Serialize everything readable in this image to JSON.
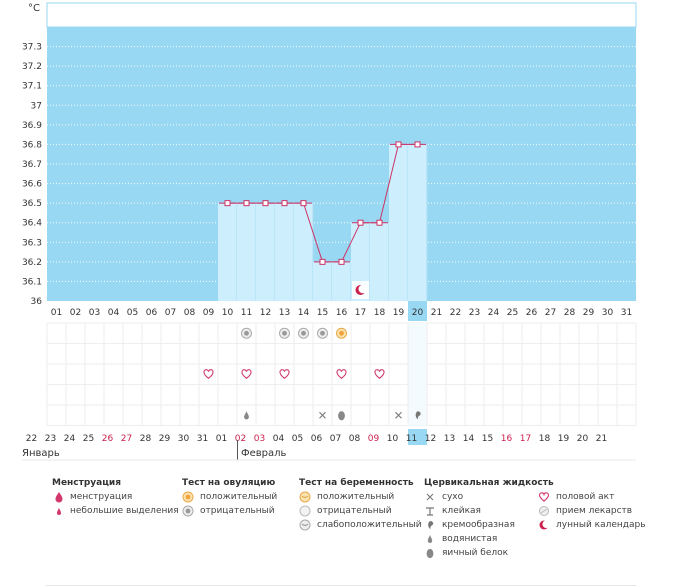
{
  "chart_data": {
    "type": "area",
    "unit_label": "°C",
    "ylim": [
      36,
      37.4
    ],
    "y_ticks": [
      "36",
      "36.1",
      "36.2",
      "36.3",
      "36.4",
      "36.5",
      "36.6",
      "36.7",
      "36.8",
      "36.9",
      "37",
      "37.1",
      "37.2",
      "37.3"
    ],
    "cycle_days": [
      "01",
      "02",
      "03",
      "04",
      "05",
      "06",
      "07",
      "08",
      "09",
      "10",
      "11",
      "12",
      "13",
      "14",
      "15",
      "16",
      "17",
      "18",
      "19",
      "20",
      "21",
      "22",
      "23",
      "24",
      "25",
      "26",
      "27",
      "28",
      "29",
      "30",
      "31"
    ],
    "current_day": "20",
    "temperatures": [
      null,
      null,
      null,
      null,
      null,
      null,
      null,
      null,
      null,
      36.5,
      36.5,
      36.5,
      36.5,
      36.5,
      36.2,
      36.2,
      36.4,
      36.4,
      36.8,
      36.8,
      null,
      null,
      null,
      null,
      null,
      null,
      null,
      null,
      null,
      null,
      null
    ],
    "grid": true,
    "dates": [
      "22",
      "23",
      "24",
      "25",
      "26",
      "27",
      "28",
      "29",
      "30",
      "31",
      "01",
      "02",
      "03",
      "04",
      "05",
      "06",
      "07",
      "08",
      "09",
      "10",
      "11",
      "12",
      "13",
      "14",
      "15",
      "16",
      "17",
      "18",
      "19",
      "20",
      "21"
    ],
    "date_colors": [
      "#333333",
      "#333333",
      "#333333",
      "#333333",
      "#cc1f4c",
      "#cc1f4c",
      "#333333",
      "#333333",
      "#333333",
      "#333333",
      "#333333",
      "#cc1f4c",
      "#cc1f4c",
      "#333333",
      "#333333",
      "#333333",
      "#333333",
      "#333333",
      "#cc1f4c",
      "#333333",
      "#333333",
      "#333333",
      "#333333",
      "#333333",
      "#333333",
      "#cc1f4c",
      "#cc1f4c",
      "#333333",
      "#333333",
      "#333333",
      "#333333"
    ],
    "months": [
      "Январь",
      "Февраль"
    ],
    "moon_day": "17",
    "ovulation_test": {
      "11": "negative",
      "13": "negative",
      "14": "negative",
      "15": "negative",
      "16": "positive"
    },
    "intercourse_days": [
      "09",
      "11",
      "13",
      "16",
      "18"
    ],
    "cervical_fluid": {
      "11": "watery",
      "15": "dry",
      "16": "egg_white",
      "19": "dry",
      "20": "creamy"
    }
  },
  "colors": {
    "background_fill": "#99d8f2",
    "bar_fill": "#cdeefd",
    "line": "#cc3366",
    "marker_fill": "#ffffff",
    "highlight": "#99d8f2",
    "red_text": "#cc1f4c"
  },
  "legend": {
    "menstruation": {
      "title": "Менструация",
      "items": [
        "менструация",
        "небольшие выделения"
      ]
    },
    "ovulation_test": {
      "title": "Тест на овуляцию",
      "items": [
        "положительный",
        "отрицательный"
      ]
    },
    "pregnancy_test": {
      "title": "Тест на беременность",
      "items": [
        "положительный",
        "отрицательный",
        "слабоположительный"
      ]
    },
    "cervical_fluid": {
      "title": "Цервикальная жидкость",
      "items": [
        "сухо",
        "клейкая",
        "кремообразная",
        "водянистая",
        "яичный белок"
      ]
    },
    "other": {
      "items": [
        "половой акт",
        "прием лекарств",
        "лунный календарь"
      ]
    }
  }
}
